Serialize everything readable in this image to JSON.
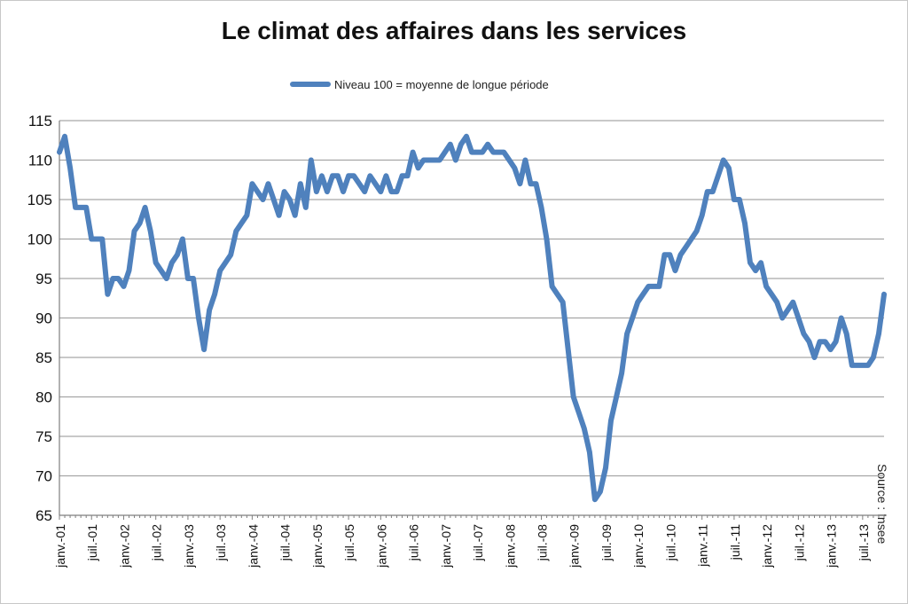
{
  "chart_data": {
    "type": "line",
    "title": "Le climat des affaires dans les services",
    "legend": "Niveau 100 = moyenne de longue période",
    "legend_position": "top-center",
    "xlabel": "",
    "ylabel": "",
    "ylim": [
      65,
      115
    ],
    "yticks": [
      65,
      70,
      75,
      80,
      85,
      90,
      95,
      100,
      105,
      110,
      115
    ],
    "grid": true,
    "source": "Source : Insee",
    "x_tick_labels": [
      "janv.-01",
      "juil.-01",
      "janv.-02",
      "juil.-02",
      "janv.-03",
      "juil.-03",
      "janv.-04",
      "juil.-04",
      "janv.-05",
      "juil.-05",
      "janv.-06",
      "juil.-06",
      "janv.-07",
      "juil.-07",
      "janv.-08",
      "juil.-08",
      "janv.-09",
      "juil.-09",
      "janv.-10",
      "juil.-10",
      "janv.-11",
      "juil.-11",
      "janv.-12",
      "juil.-12",
      "janv.-13",
      "juil.-13"
    ],
    "series": [
      {
        "name": "Niveau 100 = moyenne de longue période",
        "color": "#4f81bd",
        "start": "janv.-01",
        "frequency": "monthly",
        "values": [
          111,
          113,
          109,
          104,
          104,
          104,
          100,
          100,
          100,
          93,
          95,
          95,
          94,
          96,
          101,
          102,
          104,
          101,
          97,
          96,
          95,
          97,
          98,
          100,
          95,
          95,
          90,
          86,
          91,
          93,
          96,
          97,
          98,
          101,
          102,
          103,
          107,
          106,
          105,
          107,
          105,
          103,
          106,
          105,
          103,
          107,
          104,
          110,
          106,
          108,
          106,
          108,
          108,
          106,
          108,
          108,
          107,
          106,
          108,
          107,
          106,
          108,
          106,
          106,
          108,
          108,
          111,
          109,
          110,
          110,
          110,
          110,
          111,
          112,
          110,
          112,
          113,
          111,
          111,
          111,
          112,
          111,
          111,
          111,
          110,
          109,
          107,
          110,
          107,
          107,
          104,
          100,
          94,
          93,
          92,
          86,
          80,
          78,
          76,
          73,
          67,
          68,
          71,
          77,
          80,
          83,
          88,
          90,
          92,
          93,
          94,
          94,
          94,
          98,
          98,
          96,
          98,
          99,
          100,
          101,
          103,
          106,
          106,
          108,
          110,
          109,
          105,
          105,
          102,
          97,
          96,
          97,
          94,
          93,
          92,
          90,
          91,
          92,
          90,
          88,
          87,
          85,
          87,
          87,
          86,
          87,
          90,
          88,
          84,
          84,
          84,
          84,
          85,
          88,
          93
        ]
      }
    ]
  }
}
